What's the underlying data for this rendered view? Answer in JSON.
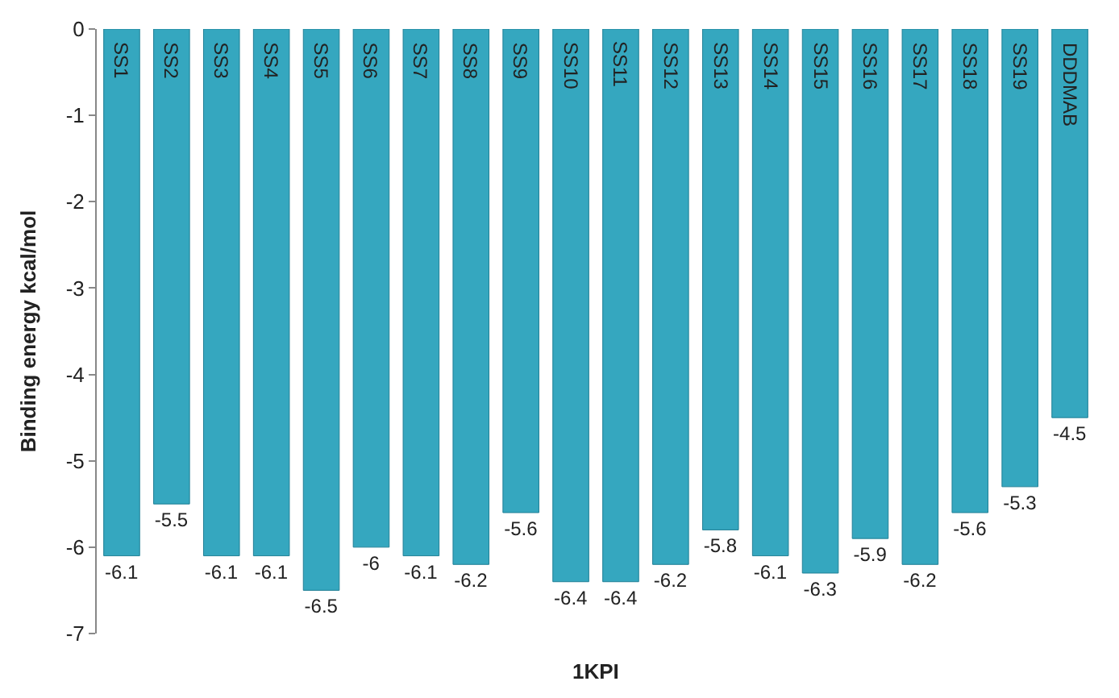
{
  "chart_data": {
    "type": "bar",
    "xlabel": "1KPI",
    "ylabel": "Binding energy kcal/mol",
    "categories": [
      "SS1",
      "SS2",
      "SS3",
      "SS4",
      "SS5",
      "SS6",
      "SS7",
      "SS8",
      "SS9",
      "SS10",
      "SS11",
      "SS12",
      "SS13",
      "SS14",
      "SS15",
      "SS16",
      "SS17",
      "SS18",
      "SS19",
      "DDDMAB"
    ],
    "values": [
      -6.1,
      -5.5,
      -6.1,
      -6.1,
      -6.5,
      -6,
      -6.1,
      -6.2,
      -5.6,
      -6.4,
      -6.4,
      -6.2,
      -5.8,
      -6.1,
      -6.3,
      -5.9,
      -6.2,
      -5.6,
      -5.3,
      -4.5
    ],
    "color": "#35a7bf",
    "ylim": [
      -7,
      0
    ],
    "yticks": [
      -7,
      -6,
      -5,
      -4,
      -3,
      -2,
      -1,
      0
    ],
    "data_labels": true
  }
}
